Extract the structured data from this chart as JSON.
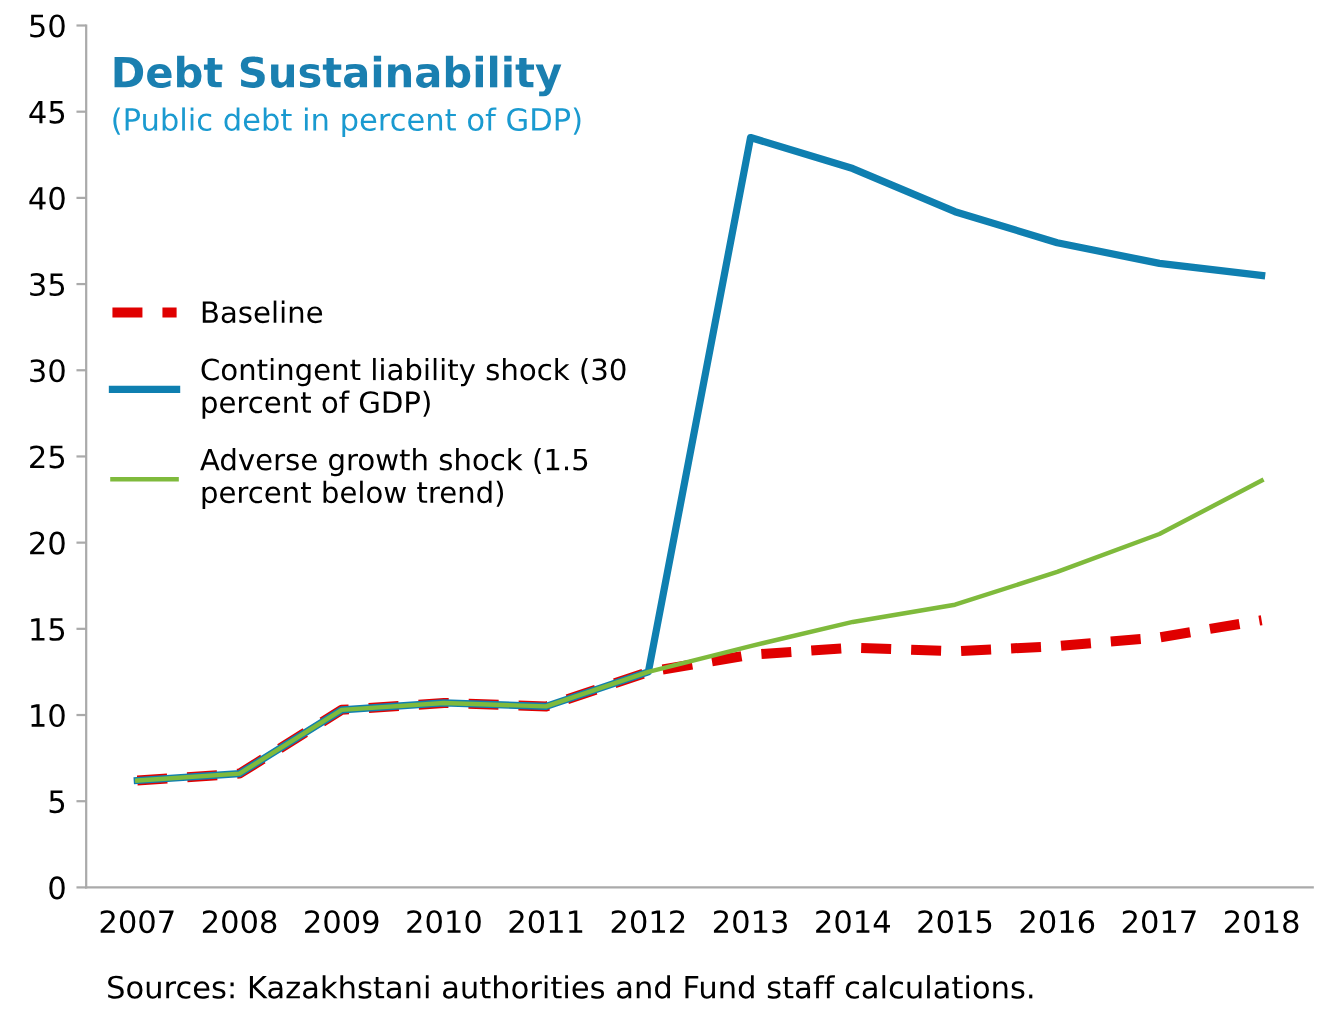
{
  "chart_data": {
    "type": "line",
    "title": "Debt Sustainability",
    "subtitle": "(Public debt in percent of GDP)",
    "categories": [
      "2007",
      "2008",
      "2009",
      "2010",
      "2011",
      "2012",
      "2013",
      "2014",
      "2015",
      "2016",
      "2017",
      "2018"
    ],
    "series": [
      {
        "name": "Baseline",
        "color": "#e00000",
        "line_style": "dashed",
        "values": [
          6.2,
          6.6,
          10.3,
          10.7,
          10.5,
          12.5,
          13.5,
          13.9,
          13.7,
          14.0,
          14.5,
          15.5
        ]
      },
      {
        "name": "Contingent liability shock (30\npercent of GDP)",
        "color": "#0f7fb0",
        "line_style": "solid",
        "values": [
          6.2,
          6.6,
          10.3,
          10.7,
          10.5,
          12.5,
          43.5,
          41.7,
          39.2,
          37.4,
          36.2,
          35.5
        ]
      },
      {
        "name": "Adverse growth shock (1.5\npercent below trend)",
        "color": "#7fba3c",
        "line_style": "solid",
        "values": [
          6.2,
          6.6,
          10.3,
          10.7,
          10.5,
          12.5,
          14.0,
          15.4,
          16.4,
          18.3,
          20.5,
          23.6
        ]
      }
    ],
    "ylim": [
      0,
      50
    ],
    "yticks": [
      0,
      5,
      10,
      15,
      20,
      25,
      30,
      35,
      40,
      45,
      50
    ],
    "grid": false,
    "legend": "left",
    "marker": "none",
    "annotations": [
      "Sources: Kazakhstani authorities and Fund staff calculations."
    ]
  }
}
